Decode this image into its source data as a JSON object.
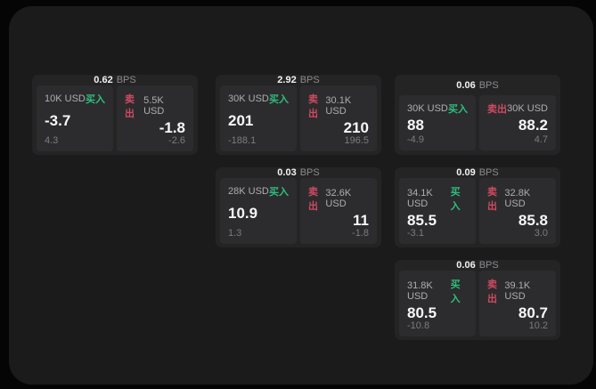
{
  "colors": {
    "buy": "#2fbe7d",
    "sell": "#d04a60",
    "page_background": "#1b1b1c",
    "card_background": "#242425",
    "panel_background": "#2c2c2e"
  },
  "cards": [
    {
      "row": 0,
      "col": 0,
      "bps": {
        "value": "0.62",
        "unit": "BPS"
      },
      "buy": {
        "amount": "10K USD",
        "label": "买入",
        "value": "-3.7",
        "sub": "4.3"
      },
      "sell": {
        "label": "卖出",
        "amount": "5.5K USD",
        "value": "-1.8",
        "sub": "-2.6"
      }
    },
    {
      "row": 0,
      "col": 1,
      "bps": {
        "value": "2.92",
        "unit": "BPS"
      },
      "buy": {
        "amount": "30K USD",
        "label": "买入",
        "value": "201",
        "sub": "-188.1"
      },
      "sell": {
        "label": "卖出",
        "amount": "30.1K USD",
        "value": "210",
        "sub": "196.5"
      }
    },
    {
      "row": 0,
      "col": 2,
      "bps": {
        "value": "0.06",
        "unit": "BPS"
      },
      "buy": {
        "amount": "30K USD",
        "label": "买入",
        "value": "88",
        "sub": "-4.9"
      },
      "sell": {
        "label": "卖出",
        "amount": "30K USD",
        "value": "88.2",
        "sub": "4.7"
      }
    },
    {
      "row": 1,
      "col": 1,
      "bps": {
        "value": "0.03",
        "unit": "BPS"
      },
      "buy": {
        "amount": "28K USD",
        "label": "买入",
        "value": "10.9",
        "sub": "1.3"
      },
      "sell": {
        "label": "卖出",
        "amount": "32.6K USD",
        "value": "11",
        "sub": "-1.8"
      }
    },
    {
      "row": 1,
      "col": 2,
      "bps": {
        "value": "0.09",
        "unit": "BPS"
      },
      "buy": {
        "amount": "34.1K USD",
        "label": "买入",
        "value": "85.5",
        "sub": "-3.1"
      },
      "sell": {
        "label": "卖出",
        "amount": "32.8K USD",
        "value": "85.8",
        "sub": "3.0"
      }
    },
    {
      "row": 2,
      "col": 2,
      "bps": {
        "value": "0.06",
        "unit": "BPS"
      },
      "buy": {
        "amount": "31.8K USD",
        "label": "买入",
        "value": "80.5",
        "sub": "-10.8"
      },
      "sell": {
        "label": "卖出",
        "amount": "39.1K USD",
        "value": "80.7",
        "sub": "10.2"
      }
    }
  ]
}
